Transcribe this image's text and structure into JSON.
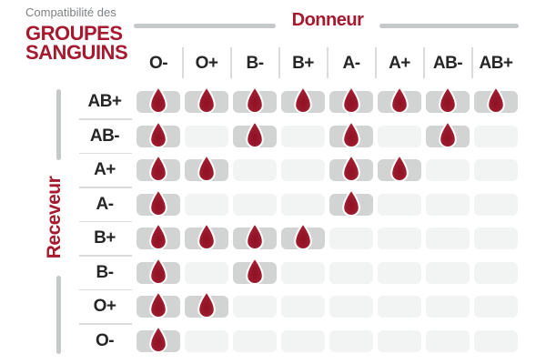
{
  "title": {
    "line1": "Compatibilité des",
    "line2": "GROUPES",
    "line3": "SANGUINS"
  },
  "axes": {
    "donor_label": "Donneur",
    "receiver_label": "Receveur"
  },
  "icons": {
    "compatible_marker": "blood-drop-icon"
  },
  "colors": {
    "brand_red": "#a6192e",
    "drop_red": "#9c1a2d",
    "drop_dark": "#8e1124",
    "drop_light": "#a92034",
    "cell_filled": "#d2d4d4",
    "cell_empty": "#f2f3f3",
    "axis_line_gray": "#c6c9ca",
    "divider_gray": "#dadcdc",
    "heading_text": "#262626",
    "subtitle_gray": "#7e8183"
  },
  "chart_data": {
    "type": "heatmap",
    "title": "Compatibilité des GROUPES SANGUINS",
    "x_axis_label": "Donneur",
    "y_axis_label": "Receveur",
    "x_labels": [
      "O-",
      "O+",
      "B-",
      "B+",
      "A-",
      "A+",
      "AB-",
      "AB+"
    ],
    "y_labels": [
      "AB+",
      "AB-",
      "A+",
      "A-",
      "B+",
      "B-",
      "O+",
      "O-"
    ],
    "values": [
      [
        1,
        1,
        1,
        1,
        1,
        1,
        1,
        1
      ],
      [
        1,
        0,
        1,
        0,
        1,
        0,
        1,
        0
      ],
      [
        1,
        1,
        0,
        0,
        1,
        1,
        0,
        0
      ],
      [
        1,
        0,
        0,
        0,
        1,
        0,
        0,
        0
      ],
      [
        1,
        1,
        1,
        1,
        0,
        0,
        0,
        0
      ],
      [
        1,
        0,
        1,
        0,
        0,
        0,
        0,
        0
      ],
      [
        1,
        1,
        0,
        0,
        0,
        0,
        0,
        0
      ],
      [
        1,
        0,
        0,
        0,
        0,
        0,
        0,
        0
      ]
    ]
  }
}
